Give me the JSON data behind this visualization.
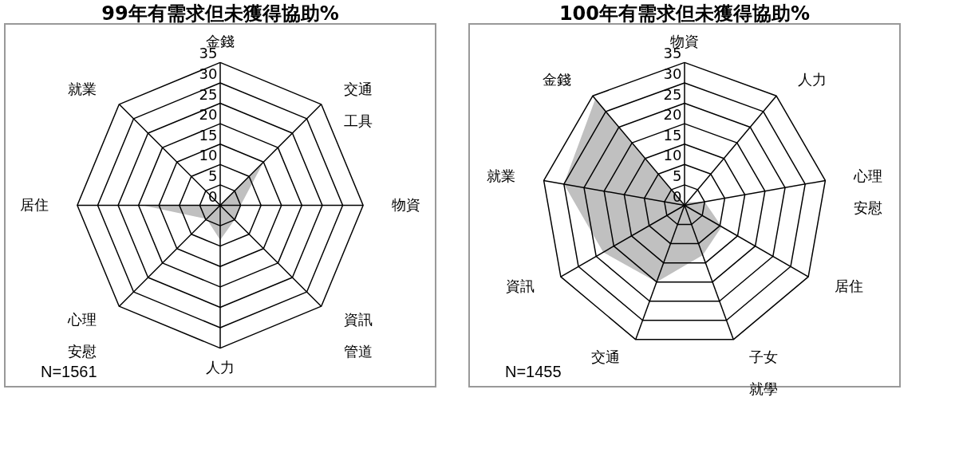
{
  "chart_data": [
    {
      "type": "radar",
      "title": "99年有需求但未獲得協助%",
      "categories": [
        "金錢",
        "交通工具",
        "物資",
        "資訊管道",
        "人力",
        "心理安慰",
        "居住",
        "就業"
      ],
      "series": [
        {
          "color": "#c0c0c0",
          "values": [
            0,
            15,
            5,
            5,
            8.5,
            4.7,
            19,
            0
          ]
        }
      ],
      "ylim": [
        0,
        35
      ],
      "yticks": [
        0,
        5,
        10,
        15,
        20,
        25,
        30,
        35
      ],
      "grid": true,
      "annotations": [
        "N=1561"
      ]
    },
    {
      "type": "radar",
      "title": "100年有需求但未獲得協助%",
      "categories": [
        "物資",
        "人力",
        "心理安慰",
        "居住",
        "子女就學",
        "交通",
        "資訊",
        "就業",
        "金錢"
      ],
      "series": [
        {
          "color": "#c0c0c0",
          "values": [
            0,
            1,
            5,
            10.5,
            13,
            20,
            23,
            30,
            34
          ]
        }
      ],
      "ylim": [
        0,
        35
      ],
      "yticks": [
        0,
        5,
        10,
        15,
        20,
        25,
        30,
        35
      ],
      "grid": true,
      "annotations": [
        "N=1455"
      ]
    }
  ]
}
